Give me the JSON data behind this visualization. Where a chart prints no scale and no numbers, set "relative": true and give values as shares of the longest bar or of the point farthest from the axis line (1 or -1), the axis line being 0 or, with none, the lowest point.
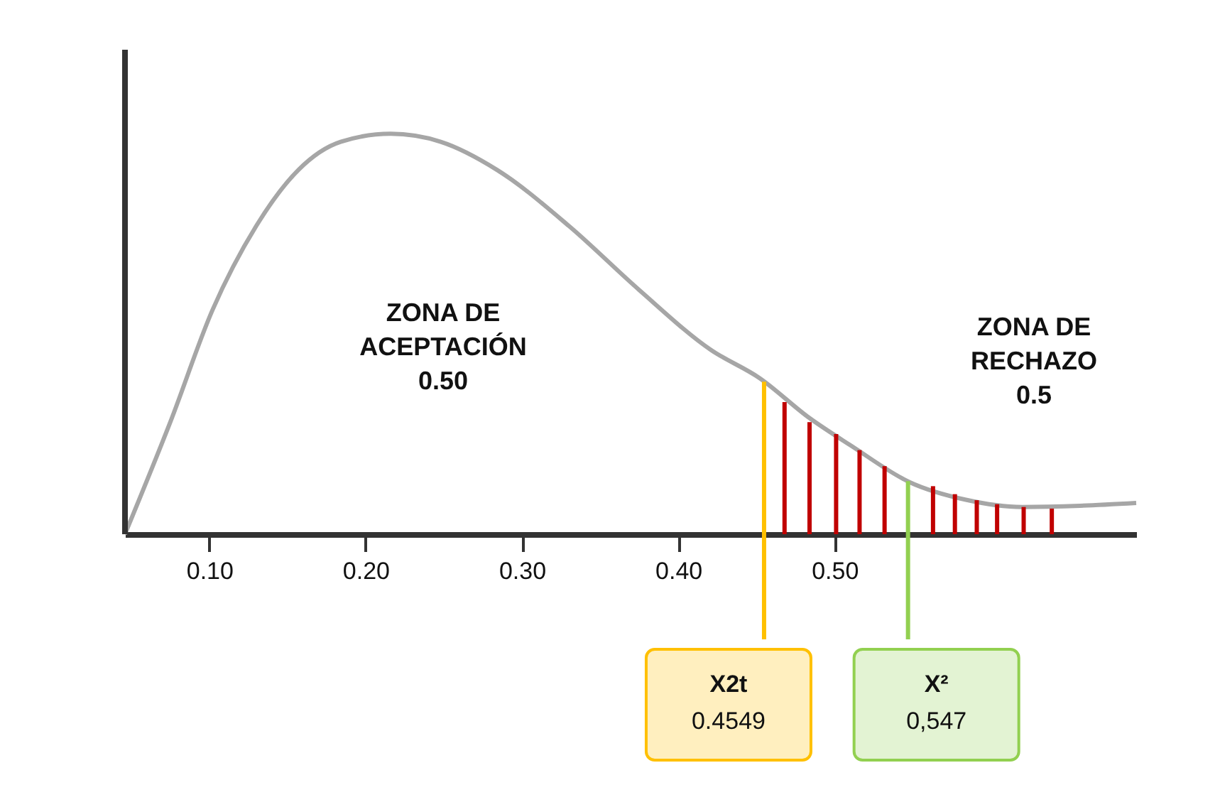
{
  "chart_data": {
    "type": "line",
    "relative": true,
    "xlim": [
      0.046,
      0.693
    ],
    "xticks": [
      {
        "value": 0.1,
        "label": "0.10"
      },
      {
        "value": 0.2,
        "label": "0.20"
      },
      {
        "value": 0.3,
        "label": "0.30"
      },
      {
        "value": 0.4,
        "label": "0.40"
      },
      {
        "value": 0.5,
        "label": "0.50"
      }
    ],
    "marker": "none",
    "line_style": "solid",
    "series": [
      {
        "color": "#a6a6a6",
        "x": [
          0.046,
          0.075,
          0.102,
          0.13,
          0.157,
          0.184,
          0.216,
          0.248,
          0.284,
          0.33,
          0.375,
          0.421,
          0.452,
          0.484,
          0.511,
          0.548,
          0.584,
          0.62,
          0.657,
          0.693
        ],
        "values": [
          0,
          0.28,
          0.56,
          0.77,
          0.91,
          0.98,
          1.0,
          0.98,
          0.91,
          0.77,
          0.61,
          0.46,
          0.39,
          0.29,
          0.22,
          0.13,
          0.086,
          0.068,
          0.071,
          0.078
        ]
      },
      {
        "type": "bar",
        "color": "#c00000",
        "x": [
          0.468,
          0.484,
          0.501,
          0.516,
          0.532,
          0.563,
          0.577,
          0.591,
          0.604,
          0.621,
          0.639
        ],
        "values": [
          0.33,
          0.28,
          0.25,
          0.21,
          0.17,
          0.12,
          0.1,
          0.085,
          0.075,
          0.068,
          0.064
        ]
      }
    ],
    "ref_lines": [
      {
        "axis": "x",
        "value": 0.4549,
        "label": "X2t\n0.4549",
        "color": "#ffc000"
      },
      {
        "axis": "x",
        "value": 0.547,
        "label": "X²\n0,547",
        "color": "#92d050"
      }
    ],
    "annotations": [
      "ZONA DE\nACEPTACIÓN\n0.50",
      "ZONA DE\nRECHAZO\n0.5"
    ]
  }
}
